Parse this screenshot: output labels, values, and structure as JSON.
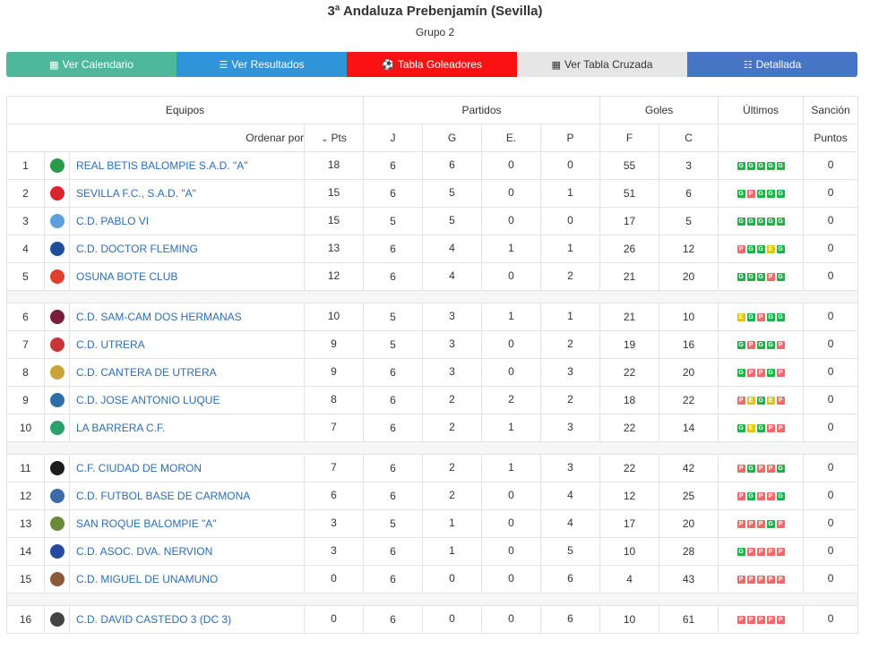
{
  "header": {
    "title": "3ª Andaluza Prebenjamín (Sevilla)",
    "subtitle": "Grupo 2"
  },
  "tabs": [
    {
      "label": "Ver Calendario",
      "icon": "calendar-icon",
      "glyph": "▦"
    },
    {
      "label": "Ver Resultados",
      "icon": "list-icon",
      "glyph": "☰"
    },
    {
      "label": "Tabla Goleadores",
      "icon": "soccer-ball-icon",
      "glyph": "⚽"
    },
    {
      "label": "Ver Tabla Cruzada",
      "icon": "table-icon",
      "glyph": "▦"
    },
    {
      "label": "Detallada",
      "icon": "detail-list-icon",
      "glyph": "☷"
    }
  ],
  "table_headers": {
    "equipos": "Equipos",
    "partidos": "Partidos",
    "goles": "Goles",
    "ultimos": "Últimos",
    "sancion": "Sanción",
    "ordenar_por": "Ordenar por",
    "pts": "Pts",
    "j": "J",
    "g": "G",
    "e": "E.",
    "p": "P",
    "f": "F",
    "c": "C",
    "puntos": "Puntos"
  },
  "rows": [
    {
      "pos": "1",
      "team": "REAL BETIS BALOMPIE S.A.D. \"A\"",
      "crest": "#2a9a4a",
      "pts": "18",
      "j": "6",
      "g": "6",
      "e": "0",
      "p": "0",
      "f": "55",
      "c": "3",
      "last": [
        "G",
        "G",
        "G",
        "G",
        "G"
      ],
      "sancion": "0"
    },
    {
      "pos": "2",
      "team": "SEVILLA F.C., S.A.D. \"A\"",
      "crest": "#d8262b",
      "pts": "15",
      "j": "6",
      "g": "5",
      "e": "0",
      "p": "1",
      "f": "51",
      "c": "6",
      "last": [
        "G",
        "P",
        "G",
        "G",
        "G"
      ],
      "sancion": "0"
    },
    {
      "pos": "3",
      "team": "C.D. PABLO VI",
      "crest": "#5ea0d8",
      "pts": "15",
      "j": "5",
      "g": "5",
      "e": "0",
      "p": "0",
      "f": "17",
      "c": "5",
      "last": [
        "G",
        "G",
        "G",
        "G",
        "G"
      ],
      "sancion": "0"
    },
    {
      "pos": "4",
      "team": "C.D. DOCTOR FLEMING",
      "crest": "#1f4f9a",
      "pts": "13",
      "j": "6",
      "g": "4",
      "e": "1",
      "p": "1",
      "f": "26",
      "c": "12",
      "last": [
        "P",
        "G",
        "G",
        "E",
        "G"
      ],
      "sancion": "0"
    },
    {
      "pos": "5",
      "team": "OSUNA BOTE CLUB",
      "crest": "#e0402f",
      "pts": "12",
      "j": "6",
      "g": "4",
      "e": "0",
      "p": "2",
      "f": "21",
      "c": "20",
      "last": [
        "G",
        "G",
        "G",
        "P",
        "G"
      ],
      "sancion": "0"
    },
    {
      "sep": true
    },
    {
      "pos": "6",
      "team": "C.D. SAM-CAM DOS HERMANAS",
      "crest": "#7a1d3a",
      "pts": "10",
      "j": "5",
      "g": "3",
      "e": "1",
      "p": "1",
      "f": "21",
      "c": "10",
      "last": [
        "E",
        "G",
        "P",
        "G",
        "G"
      ],
      "sancion": "0"
    },
    {
      "pos": "7",
      "team": "C.D. UTRERA",
      "crest": "#c8343a",
      "pts": "9",
      "j": "5",
      "g": "3",
      "e": "0",
      "p": "2",
      "f": "19",
      "c": "16",
      "last": [
        "G",
        "P",
        "G",
        "G",
        "P"
      ],
      "sancion": "0"
    },
    {
      "pos": "8",
      "team": "C.D. CANTERA DE UTRERA",
      "crest": "#c9a23a",
      "pts": "9",
      "j": "6",
      "g": "3",
      "e": "0",
      "p": "3",
      "f": "22",
      "c": "20",
      "last": [
        "G",
        "P",
        "P",
        "G",
        "P"
      ],
      "sancion": "0"
    },
    {
      "pos": "9",
      "team": "C.D. JOSE ANTONIO LUQUE",
      "crest": "#2e6fa8",
      "pts": "8",
      "j": "6",
      "g": "2",
      "e": "2",
      "p": "2",
      "f": "18",
      "c": "22",
      "last": [
        "P",
        "E",
        "G",
        "E",
        "P"
      ],
      "sancion": "0"
    },
    {
      "pos": "10",
      "team": "LA BARRERA C.F.",
      "crest": "#2aa06a",
      "pts": "7",
      "j": "6",
      "g": "2",
      "e": "1",
      "p": "3",
      "f": "22",
      "c": "14",
      "last": [
        "G",
        "E",
        "G",
        "P",
        "P"
      ],
      "sancion": "0"
    },
    {
      "sep": true
    },
    {
      "pos": "11",
      "team": "C.F. CIUDAD DE MORON",
      "crest": "#1d1d1d",
      "pts": "7",
      "j": "6",
      "g": "2",
      "e": "1",
      "p": "3",
      "f": "22",
      "c": "42",
      "last": [
        "P",
        "G",
        "P",
        "P",
        "G"
      ],
      "sancion": "0"
    },
    {
      "pos": "12",
      "team": "C.D. FUTBOL BASE DE CARMONA",
      "crest": "#3a6aa8",
      "pts": "6",
      "j": "6",
      "g": "2",
      "e": "0",
      "p": "4",
      "f": "12",
      "c": "25",
      "last": [
        "P",
        "G",
        "P",
        "P",
        "G"
      ],
      "sancion": "0"
    },
    {
      "pos": "13",
      "team": "SAN ROQUE BALOMPIE \"A\"",
      "crest": "#6a8a3a",
      "pts": "3",
      "j": "5",
      "g": "1",
      "e": "0",
      "p": "4",
      "f": "17",
      "c": "20",
      "last": [
        "P",
        "P",
        "P",
        "G",
        "P"
      ],
      "sancion": "0"
    },
    {
      "pos": "14",
      "team": "C.D. ASOC. DVA. NERVION",
      "crest": "#2a4aa0",
      "pts": "3",
      "j": "6",
      "g": "1",
      "e": "0",
      "p": "5",
      "f": "10",
      "c": "28",
      "last": [
        "G",
        "P",
        "P",
        "P",
        "P"
      ],
      "sancion": "0"
    },
    {
      "pos": "15",
      "team": "C.D. MIGUEL DE UNAMUNO",
      "crest": "#8a5a3a",
      "pts": "0",
      "j": "6",
      "g": "0",
      "e": "0",
      "p": "6",
      "f": "4",
      "c": "43",
      "last": [
        "P",
        "P",
        "P",
        "P",
        "P"
      ],
      "sancion": "0"
    },
    {
      "sep": true
    },
    {
      "pos": "16",
      "team": "C.D. DAVID CASTEDO 3 (DC 3)",
      "crest": "#444444",
      "pts": "0",
      "j": "6",
      "g": "0",
      "e": "0",
      "p": "6",
      "f": "10",
      "c": "61",
      "last": [
        "P",
        "P",
        "P",
        "P",
        "P"
      ],
      "sancion": "0"
    }
  ]
}
